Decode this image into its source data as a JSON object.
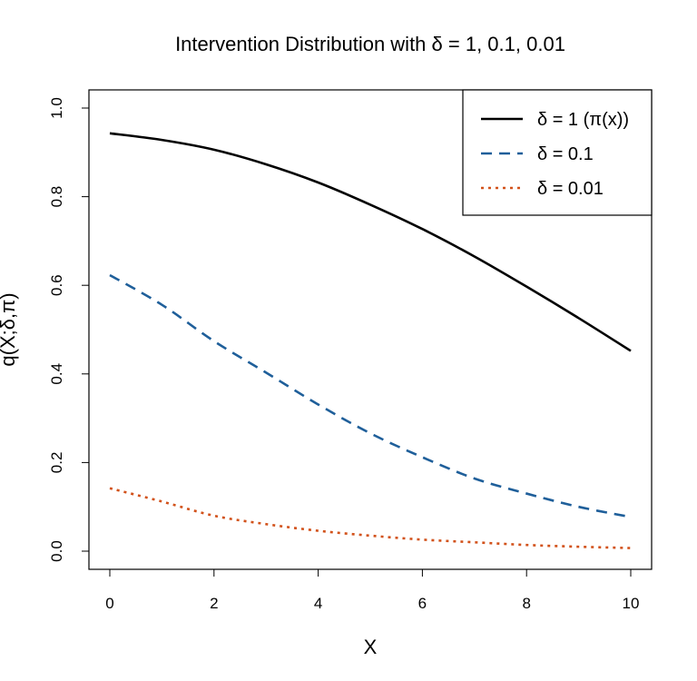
{
  "chart_data": {
    "type": "line",
    "title": "Intervention Distribution with δ = 1, 0.1, 0.01",
    "xlabel": "X",
    "ylabel": "q(X;δ,π)",
    "xlim": [
      0,
      10
    ],
    "ylim": [
      0,
      1
    ],
    "x_ticks": [
      0,
      2,
      4,
      6,
      8,
      10
    ],
    "y_ticks": [
      0.0,
      0.2,
      0.4,
      0.6,
      0.8,
      1.0
    ],
    "x_tick_labels": [
      "0",
      "2",
      "4",
      "6",
      "8",
      "10"
    ],
    "y_tick_labels": [
      "0.0",
      "0.2",
      "0.4",
      "0.6",
      "0.8",
      "1.0"
    ],
    "legend_position": "top-right",
    "x": [
      0,
      1,
      2,
      3,
      4,
      5,
      6,
      7,
      8,
      9,
      10
    ],
    "series": [
      {
        "name": "δ = 1 (π(x))",
        "color": "#000000",
        "style": "solid",
        "values": [
          0.943,
          0.928,
          0.906,
          0.873,
          0.832,
          0.782,
          0.727,
          0.665,
          0.597,
          0.526,
          0.452
        ]
      },
      {
        "name": "δ = 0.1",
        "color": "#1f5f9a",
        "style": "dashed",
        "values": [
          0.623,
          0.556,
          0.474,
          0.403,
          0.331,
          0.266,
          0.212,
          0.164,
          0.13,
          0.1,
          0.077
        ]
      },
      {
        "name": "δ = 0.01",
        "color": "#d2521b",
        "style": "dotted",
        "values": [
          0.142,
          0.112,
          0.08,
          0.061,
          0.046,
          0.035,
          0.026,
          0.02,
          0.014,
          0.01,
          0.007
        ]
      }
    ]
  }
}
